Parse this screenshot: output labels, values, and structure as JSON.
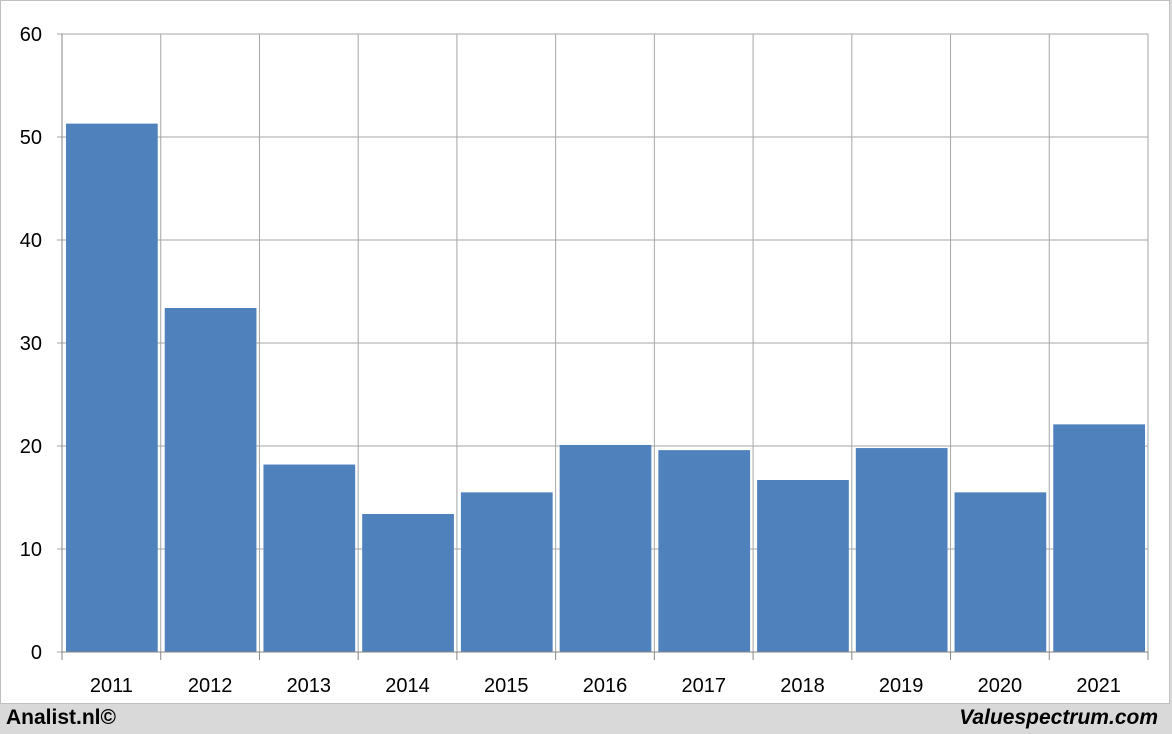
{
  "chart_data": {
    "type": "bar",
    "categories": [
      "2011",
      "2012",
      "2013",
      "2014",
      "2015",
      "2016",
      "2017",
      "2018",
      "2019",
      "2020",
      "2021"
    ],
    "values": [
      51.3,
      33.4,
      18.2,
      13.4,
      15.5,
      20.1,
      19.6,
      16.7,
      19.8,
      15.5,
      22.1
    ],
    "title": "",
    "xlabel": "",
    "ylabel": "",
    "ylim": [
      0,
      60
    ],
    "yticks": [
      "0",
      "10",
      "20",
      "30",
      "40",
      "50",
      "60"
    ],
    "grid": true,
    "legend": "none",
    "colors": {
      "bar": "#4f81bd",
      "grid": "#a6a6a6",
      "background": "#ffffff"
    }
  },
  "footer": {
    "left_text": "Analist.nl©",
    "right_text": "Valuespectrum.com"
  }
}
